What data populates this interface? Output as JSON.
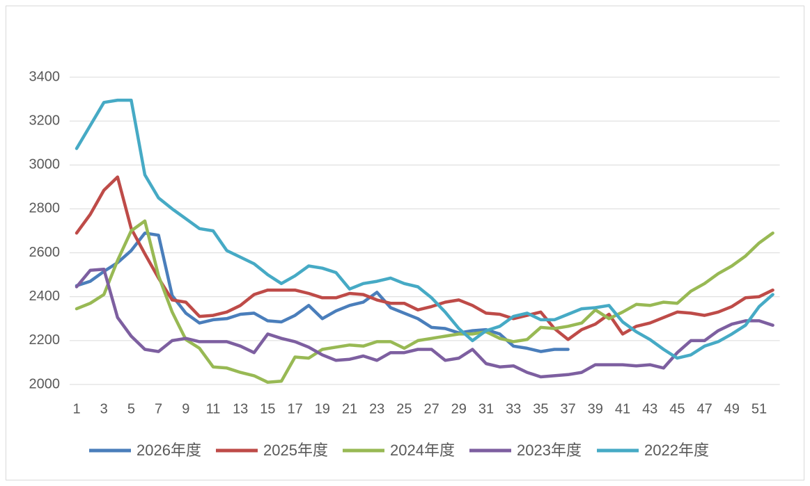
{
  "chart_data": {
    "type": "line",
    "categories": [
      1,
      null,
      3,
      null,
      5,
      null,
      7,
      null,
      9,
      null,
      11,
      null,
      13,
      null,
      15,
      null,
      17,
      null,
      19,
      null,
      21,
      null,
      23,
      null,
      25,
      null,
      27,
      null,
      29,
      null,
      31,
      null,
      33,
      null,
      35,
      null,
      37,
      null,
      39,
      null,
      41,
      null,
      43,
      null,
      45,
      null,
      47,
      null,
      49,
      null,
      51,
      null
    ],
    "ylim": [
      2000,
      3400
    ],
    "yticks": [
      2000,
      2200,
      2400,
      2600,
      2800,
      3000,
      3200,
      3400
    ],
    "grid": true,
    "legend": "bottom",
    "series": [
      {
        "name": "2026年度",
        "color": "#4a7ebb",
        "values": [
          2450,
          2470,
          2515,
          2555,
          2610,
          2690,
          2680,
          2405,
          2325,
          2280,
          2295,
          2300,
          2320,
          2325,
          2290,
          2285,
          2315,
          2360,
          2300,
          2335,
          2360,
          2375,
          2420,
          2350,
          2325,
          2300,
          2260,
          2255,
          2235,
          2245,
          2250,
          2230,
          2175,
          2165,
          2150,
          2160,
          2160,
          null,
          null,
          null,
          null,
          null,
          null,
          null,
          null,
          null,
          null,
          null,
          null,
          null,
          null,
          null
        ]
      },
      {
        "name": "2025年度",
        "color": "#be4b48",
        "values": [
          2690,
          2775,
          2885,
          2945,
          2710,
          2595,
          2485,
          2385,
          2375,
          2310,
          2315,
          2330,
          2360,
          2410,
          2430,
          2430,
          2430,
          2415,
          2395,
          2395,
          2415,
          2410,
          2385,
          2370,
          2370,
          2340,
          2355,
          2375,
          2385,
          2360,
          2325,
          2320,
          2300,
          2315,
          2330,
          2255,
          2205,
          2250,
          2275,
          2320,
          2230,
          2265,
          2280,
          2305,
          2330,
          2325,
          2315,
          2330,
          2355,
          2395,
          2400,
          2430
        ]
      },
      {
        "name": "2024年度",
        "color": "#98b954",
        "values": [
          2345,
          2370,
          2410,
          2565,
          2700,
          2745,
          2495,
          2330,
          2205,
          2165,
          2080,
          2075,
          2055,
          2040,
          2010,
          2015,
          2125,
          2120,
          2160,
          2170,
          2180,
          2175,
          2195,
          2195,
          2165,
          2200,
          2210,
          2220,
          2230,
          2230,
          2240,
          2210,
          2195,
          2205,
          2260,
          2255,
          2265,
          2280,
          2340,
          2300,
          2330,
          2365,
          2360,
          2375,
          2370,
          2425,
          2460,
          2505,
          2540,
          2585,
          2645,
          2690
        ]
      },
      {
        "name": "2023年度",
        "color": "#7d5fa0",
        "values": [
          2445,
          2520,
          2525,
          2305,
          2220,
          2160,
          2150,
          2200,
          2210,
          2195,
          2195,
          2195,
          2175,
          2145,
          2230,
          2210,
          2195,
          2170,
          2135,
          2110,
          2115,
          2130,
          2110,
          2145,
          2145,
          2160,
          2160,
          2110,
          2120,
          2160,
          2095,
          2080,
          2085,
          2055,
          2035,
          2040,
          2045,
          2055,
          2090,
          2090,
          2090,
          2085,
          2090,
          2075,
          2145,
          2200,
          2200,
          2245,
          2275,
          2290,
          2290,
          2270
        ]
      },
      {
        "name": "2022年度",
        "color": "#46aac5",
        "values": [
          3075,
          3180,
          3285,
          3295,
          3295,
          2955,
          2850,
          2800,
          2755,
          2710,
          2700,
          2610,
          2580,
          2550,
          2500,
          2460,
          2495,
          2540,
          2530,
          2510,
          2435,
          2460,
          2470,
          2485,
          2460,
          2445,
          2395,
          2330,
          2255,
          2200,
          2245,
          2265,
          2310,
          2325,
          2295,
          2295,
          2320,
          2345,
          2350,
          2360,
          2285,
          2240,
          2205,
          2160,
          2120,
          2135,
          2175,
          2195,
          2230,
          2270,
          2355,
          2410
        ]
      }
    ]
  }
}
